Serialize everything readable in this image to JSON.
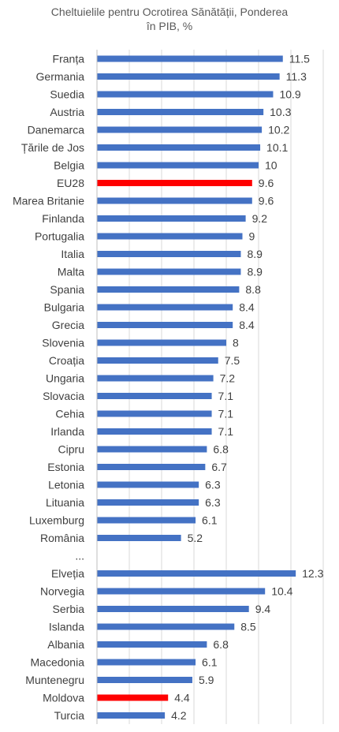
{
  "chart_data": {
    "type": "bar",
    "orientation": "horizontal",
    "title_lines": [
      "Cheltuielile pentru Ocrotirea Sănătății, Ponderea",
      "în PIB, %"
    ],
    "xlim": [
      0,
      14
    ],
    "grid": true,
    "colors": {
      "default": "#4472C4",
      "highlight": "#FF0000"
    },
    "categories": [
      "Franța",
      "Germania",
      "Suedia",
      "Austria",
      "Danemarca",
      "Țările de Jos",
      "Belgia",
      "EU28",
      "Marea Britanie",
      "Finlanda",
      "Portugalia",
      "Italia",
      "Malta",
      "Spania",
      "Bulgaria",
      "Grecia",
      "Slovenia",
      "Croația",
      "Ungaria",
      "Slovacia",
      "Cehia",
      "Irlanda",
      "Cipru",
      "Estonia",
      "Letonia",
      "Lituania",
      "Luxemburg",
      "România",
      "...",
      "Elveția",
      "Norvegia",
      "Serbia",
      "Islanda",
      "Albania",
      "Macedonia",
      "Muntenegru",
      "Moldova",
      "Turcia"
    ],
    "values": [
      11.5,
      11.3,
      10.9,
      10.3,
      10.2,
      10.1,
      10,
      9.6,
      9.6,
      9.2,
      9,
      8.9,
      8.9,
      8.8,
      8.4,
      8.4,
      8,
      7.5,
      7.2,
      7.1,
      7.1,
      7.1,
      6.8,
      6.7,
      6.3,
      6.3,
      6.1,
      5.2,
      null,
      12.3,
      10.4,
      9.4,
      8.5,
      6.8,
      6.1,
      5.9,
      4.4,
      4.2
    ],
    "value_labels": [
      "11.5",
      "11.3",
      "10.9",
      "10.3",
      "10.2",
      "10.1",
      "10",
      "9.6",
      "9.6",
      "9.2",
      "9",
      "8.9",
      "8.9",
      "8.8",
      "8.4",
      "8.4",
      "8",
      "7.5",
      "7.2",
      "7.1",
      "7.1",
      "7.1",
      "6.8",
      "6.7",
      "6.3",
      "6.3",
      "6.1",
      "5.2",
      "",
      "12.3",
      "10.4",
      "9.4",
      "8.5",
      "6.8",
      "6.1",
      "5.9",
      "4.4",
      "4.2"
    ],
    "highlighted": [
      "EU28",
      "Moldova"
    ]
  }
}
